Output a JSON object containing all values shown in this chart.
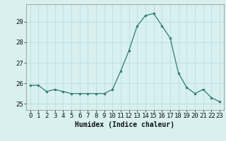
{
  "x": [
    0,
    1,
    2,
    3,
    4,
    5,
    6,
    7,
    8,
    9,
    10,
    11,
    12,
    13,
    14,
    15,
    16,
    17,
    18,
    19,
    20,
    21,
    22,
    23
  ],
  "y": [
    25.9,
    25.9,
    25.6,
    25.7,
    25.6,
    25.5,
    25.5,
    25.5,
    25.5,
    25.5,
    25.7,
    26.6,
    27.6,
    28.8,
    29.3,
    29.4,
    28.8,
    28.2,
    26.5,
    25.8,
    25.5,
    25.7,
    25.3,
    25.1
  ],
  "line_color": "#2e7d6e",
  "marker": "o",
  "marker_size": 2,
  "bg_color": "#d8f0f0",
  "grid_color": "#b8d8d8",
  "xlabel": "Humidex (Indice chaleur)",
  "ylim": [
    24.7,
    29.85
  ],
  "xlim": [
    -0.5,
    23.5
  ],
  "yticks": [
    25,
    26,
    27,
    28,
    29
  ],
  "xticks": [
    0,
    1,
    2,
    3,
    4,
    5,
    6,
    7,
    8,
    9,
    10,
    11,
    12,
    13,
    14,
    15,
    16,
    17,
    18,
    19,
    20,
    21,
    22,
    23
  ],
  "label_fontsize": 7,
  "tick_fontsize": 6.5
}
